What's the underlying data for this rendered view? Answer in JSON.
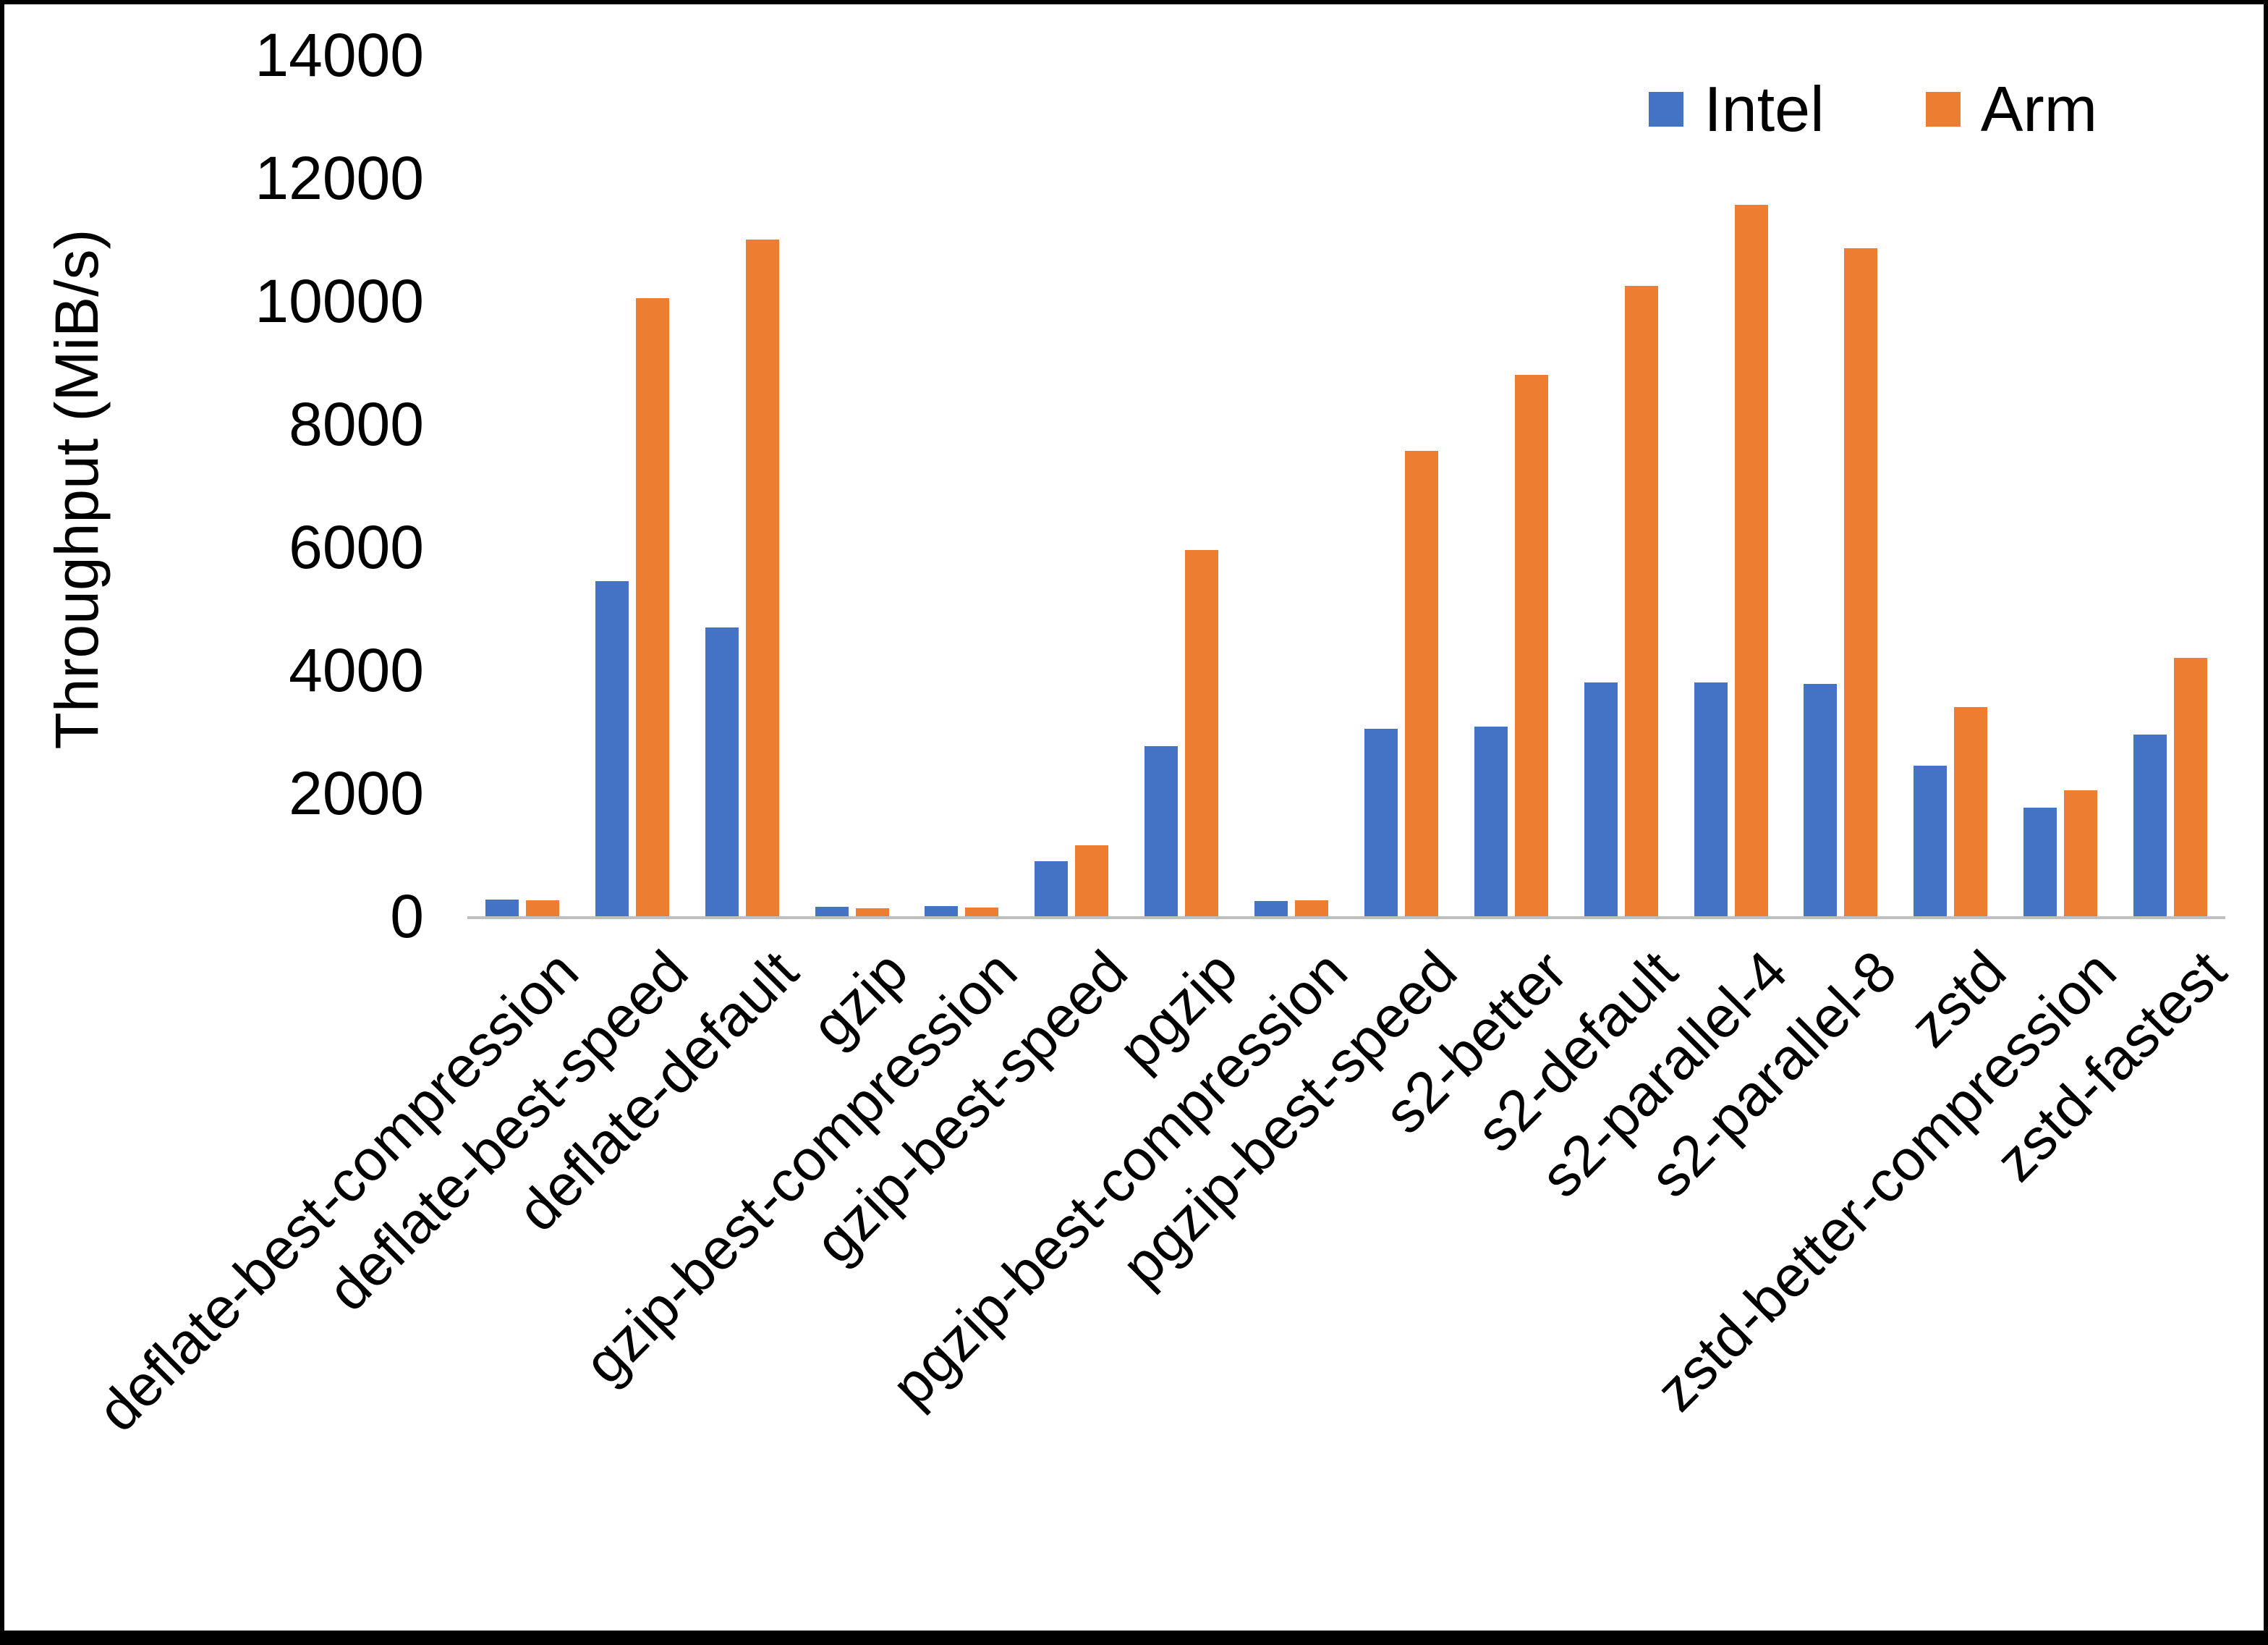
{
  "chart_data": {
    "type": "bar",
    "title": "",
    "xlabel": "",
    "ylabel": "Throughput (MiB/s)",
    "ylim": [
      0,
      14000
    ],
    "yticks": [
      0,
      2000,
      4000,
      6000,
      8000,
      10000,
      12000,
      14000
    ],
    "grid": false,
    "legend_position": "top-right",
    "categories": [
      "deflate-best-compression",
      "deflate-best-speed",
      "deflate-default",
      "gzip",
      "gzip-best-compression",
      "gzip-best-speed",
      "pgzip",
      "pgzip-best-compression",
      "pgzip-best-speed",
      "s2-better",
      "s2-default",
      "s2-parallel-4",
      "s2-parallel-8",
      "zstd",
      "zstd-better-compression",
      "zstd-fastest"
    ],
    "series": [
      {
        "name": "Intel",
        "color": "#4472C4",
        "values": [
          270,
          5450,
          4700,
          150,
          160,
          900,
          2760,
          250,
          3050,
          3080,
          3800,
          3800,
          3780,
          2450,
          1760,
          2950
        ]
      },
      {
        "name": "Arm",
        "color": "#ED7D31",
        "values": [
          260,
          10050,
          11000,
          130,
          140,
          1150,
          5950,
          260,
          7560,
          8800,
          10250,
          11560,
          10860,
          3400,
          2050,
          4200
        ]
      }
    ]
  }
}
